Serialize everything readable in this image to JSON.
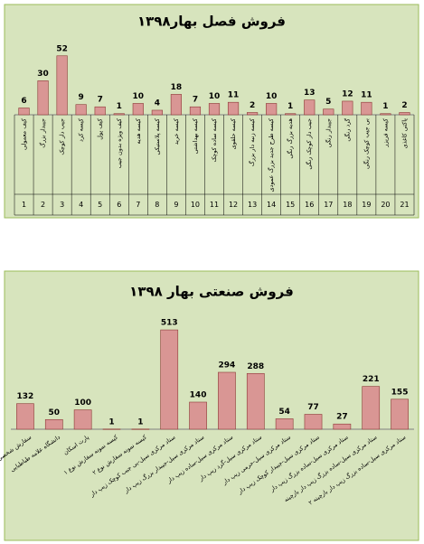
{
  "chart_data": [
    {
      "type": "bar",
      "title": "فروش فصل بهار۱۳۹۸",
      "color": "#d99694",
      "ylim": [
        0,
        55
      ],
      "categories": [
        "کیف معمولی",
        "جیبدار بزرگ",
        "جیب دار کوچک",
        "کیسه کرد",
        "کیف پول",
        "کیف ویژه بدون جیب",
        "کیسه هدیه",
        "کیسه پلاستیکی",
        "کیسه خرید",
        "کیسه بهداشتی",
        "کیسه ساده کوچک",
        "کیسه حلقوی",
        "کیسه زنبه دار بزرگ",
        "کیسه طرح جدید بزرگ عمودی",
        "هدیه بزرگ رنگی",
        "جیب دار کوچک رنگی",
        "جیبدار رنگی",
        "گرد رنگی",
        "بی جیب کوچک رنگی",
        "کیسه فریزر",
        "پاکتی کاغذی"
      ],
      "values": [
        6,
        30,
        52,
        9,
        7,
        1,
        10,
        4,
        18,
        7,
        10,
        11,
        2,
        10,
        1,
        13,
        5,
        12,
        11,
        1,
        2
      ],
      "category_numbers": [
        1,
        2,
        3,
        4,
        5,
        6,
        7,
        8,
        9,
        10,
        11,
        12,
        13,
        14,
        15,
        16,
        17,
        18,
        19,
        20,
        21
      ]
    },
    {
      "type": "bar",
      "title": "فروش صنعتی بهار ۱۳۹۸",
      "color": "#d99694",
      "ylim": [
        0,
        560
      ],
      "categories": [
        "سفارش شخصی",
        "دانشگاه علامه طباطبایی",
        "پارت اسکان",
        "کیسه نمونه سفارش نوع ۱",
        "کیسه نمونه سفارش نوع ۲",
        "ستاد مرکزی سیل-بی جیب کوچک زیپ دار",
        "ستاد مرکزی سیل-جیبدار بزرگ زیپ دار",
        "ستاد مرکزی سیل-ساده زیپ دار",
        "ستاد مرکزی سیل-گرد زیپ دار",
        "ستاد مرکزی سیل-حرمی زیپ دار",
        "ستاد مرکزی سیل-جیبدار کوچک زیپ دار",
        "ستاد مرکزی سیل-ساده بزرگ زیپ دار",
        "ستاد مرکزی سیل-ساده بزرگ زیپ دار بازچینه",
        "ستاد مرکزی سیل-ساده بزرگ زیپ دار بازچینه ۲"
      ],
      "values": [
        132,
        50,
        100,
        1,
        1,
        513,
        140,
        294,
        288,
        54,
        77,
        27,
        221,
        155
      ]
    }
  ]
}
